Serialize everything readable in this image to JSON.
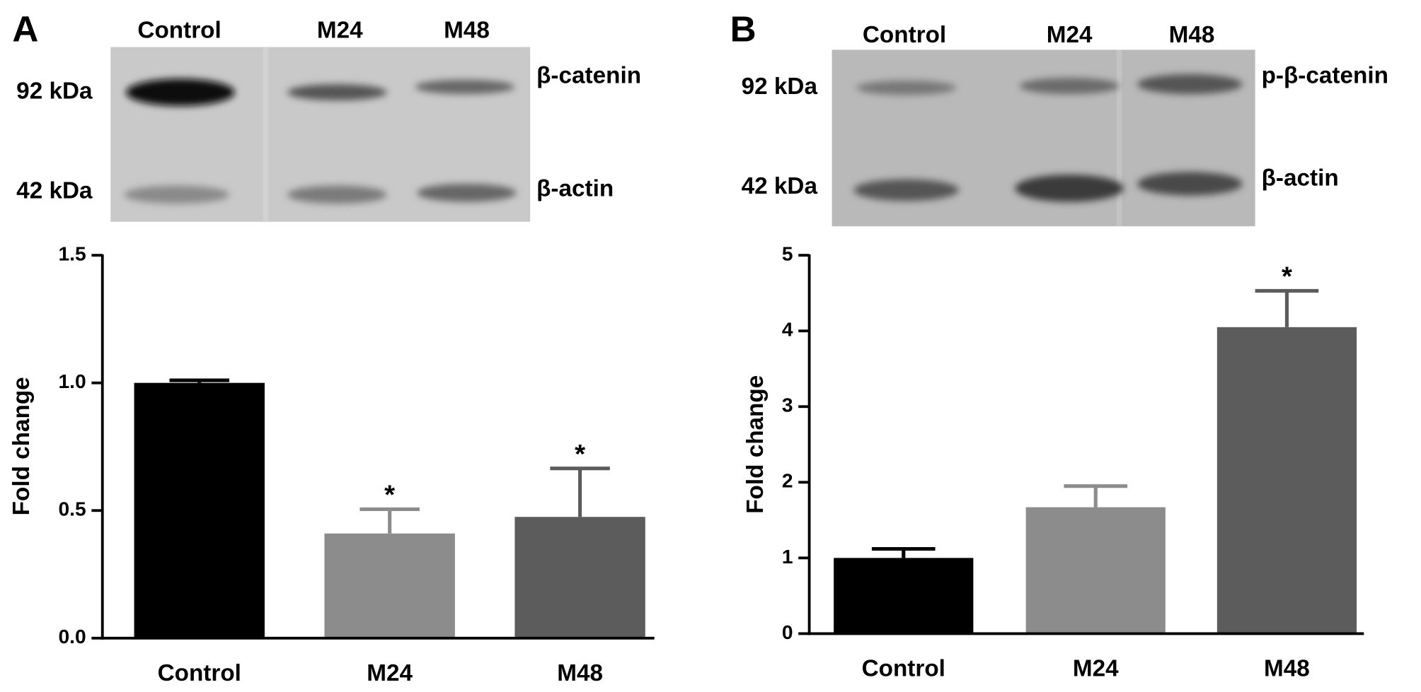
{
  "chart_data": [
    {
      "type": "bar",
      "panel_label": "A",
      "blot": {
        "lanes": [
          "Control",
          "M24",
          "M48"
        ],
        "markers": [
          "92 kDa",
          "42 kDa"
        ],
        "proteins": [
          "β-catenin",
          "β-actin"
        ]
      },
      "y_label": "Fold change",
      "categories": [
        "Control",
        "M24",
        "M48"
      ],
      "values": [
        1.0,
        0.41,
        0.475
      ],
      "errors": [
        0.01,
        0.095,
        0.19
      ],
      "colors": [
        "#000000",
        "#8c8c8c",
        "#5c5c5c"
      ],
      "annotations": [
        {
          "x": "M24",
          "text": "*"
        },
        {
          "x": "M48",
          "text": "*"
        }
      ],
      "ylim": [
        0,
        1.5
      ],
      "yticks": [
        {
          "value": 0,
          "label": "0.0"
        },
        0.5,
        {
          "value": 1,
          "label": "1.0"
        },
        1.5
      ]
    },
    {
      "type": "bar",
      "panel_label": "B",
      "blot": {
        "lanes": [
          "Control",
          "M24",
          "M48"
        ],
        "markers": [
          "92 kDa",
          "42 kDa"
        ],
        "proteins": [
          "p-β-catenin",
          "β-actin"
        ]
      },
      "y_label": "Fold change",
      "categories": [
        "Control",
        "M24",
        "M48"
      ],
      "values": [
        1.0,
        1.67,
        4.05
      ],
      "errors": [
        0.12,
        0.28,
        0.48
      ],
      "colors": [
        "#000000",
        "#8c8c8c",
        "#5c5c5c"
      ],
      "annotations": [
        {
          "x": "M48",
          "text": "*"
        }
      ],
      "ylim": [
        0,
        5
      ],
      "yticks": [
        0,
        1,
        2,
        3,
        4,
        5
      ]
    }
  ]
}
